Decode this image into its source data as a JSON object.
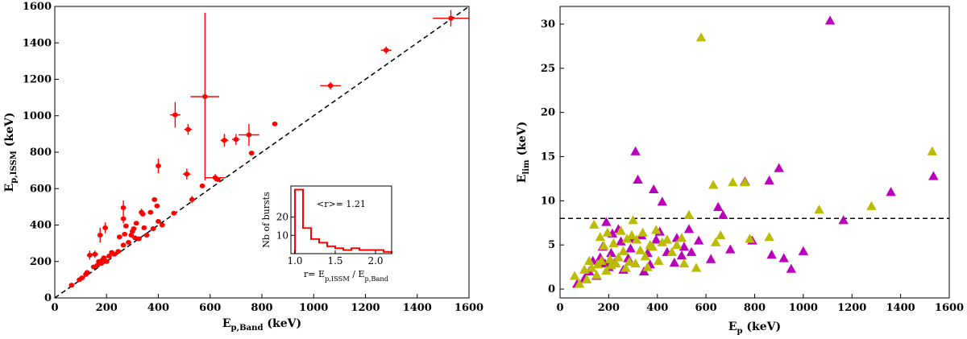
{
  "chart_data": [
    {
      "type": "scatter",
      "title": "",
      "xlabel": "E_p,Band (keV)",
      "ylabel": "E_p,ISSM (keV)",
      "xlim": [
        0,
        1600
      ],
      "ylim": [
        0,
        1600
      ],
      "xticks": [
        "0",
        "200",
        "400",
        "600",
        "800",
        "1000",
        "1200",
        "1400",
        "1600"
      ],
      "yticks": [
        "0",
        "200",
        "400",
        "600",
        "800",
        "1000",
        "1200",
        "1400",
        "1600"
      ],
      "reference_line": "y = x (dashed)",
      "marker_color": "#ff0000",
      "points": [
        {
          "x": 65,
          "y": 70,
          "xe": 0,
          "ye": 0
        },
        {
          "x": 95,
          "y": 100,
          "xe": 0,
          "ye": 0
        },
        {
          "x": 105,
          "y": 110,
          "xe": 0,
          "ye": 0
        },
        {
          "x": 120,
          "y": 130,
          "xe": 0,
          "ye": 0
        },
        {
          "x": 125,
          "y": 140,
          "xe": 0,
          "ye": 0
        },
        {
          "x": 135,
          "y": 235,
          "xe": 10,
          "ye": 25
        },
        {
          "x": 155,
          "y": 240,
          "xe": 12,
          "ye": 20
        },
        {
          "x": 150,
          "y": 170,
          "xe": 0,
          "ye": 0
        },
        {
          "x": 165,
          "y": 180,
          "xe": 0,
          "ye": 0
        },
        {
          "x": 170,
          "y": 200,
          "xe": 0,
          "ye": 0
        },
        {
          "x": 175,
          "y": 345,
          "xe": 10,
          "ye": 40
        },
        {
          "x": 180,
          "y": 190,
          "xe": 0,
          "ye": 0
        },
        {
          "x": 185,
          "y": 210,
          "xe": 0,
          "ye": 0
        },
        {
          "x": 190,
          "y": 220,
          "xe": 0,
          "ye": 0
        },
        {
          "x": 195,
          "y": 385,
          "xe": 8,
          "ye": 30
        },
        {
          "x": 200,
          "y": 200,
          "xe": 0,
          "ye": 0
        },
        {
          "x": 210,
          "y": 230,
          "xe": 0,
          "ye": 0
        },
        {
          "x": 220,
          "y": 250,
          "xe": 0,
          "ye": 0
        },
        {
          "x": 230,
          "y": 240,
          "xe": 0,
          "ye": 0
        },
        {
          "x": 245,
          "y": 255,
          "xe": 0,
          "ye": 0
        },
        {
          "x": 250,
          "y": 335,
          "xe": 0,
          "ye": 0
        },
        {
          "x": 265,
          "y": 290,
          "xe": 0,
          "ye": 0
        },
        {
          "x": 265,
          "y": 435,
          "xe": 0,
          "ye": 25
        },
        {
          "x": 265,
          "y": 495,
          "xe": 0,
          "ye": 40
        },
        {
          "x": 270,
          "y": 350,
          "xe": 0,
          "ye": 0
        },
        {
          "x": 275,
          "y": 395,
          "xe": 0,
          "ye": 0
        },
        {
          "x": 285,
          "y": 305,
          "xe": 0,
          "ye": 0
        },
        {
          "x": 295,
          "y": 345,
          "xe": 0,
          "ye": 0
        },
        {
          "x": 300,
          "y": 365,
          "xe": 0,
          "ye": 0
        },
        {
          "x": 305,
          "y": 380,
          "xe": 0,
          "ye": 0
        },
        {
          "x": 310,
          "y": 330,
          "xe": 0,
          "ye": 0
        },
        {
          "x": 315,
          "y": 410,
          "xe": 0,
          "ye": 0
        },
        {
          "x": 325,
          "y": 325,
          "xe": 0,
          "ye": 0
        },
        {
          "x": 335,
          "y": 470,
          "xe": 0,
          "ye": 20
        },
        {
          "x": 340,
          "y": 460,
          "xe": 0,
          "ye": 0
        },
        {
          "x": 345,
          "y": 385,
          "xe": 0,
          "ye": 0
        },
        {
          "x": 355,
          "y": 345,
          "xe": 0,
          "ye": 0
        },
        {
          "x": 370,
          "y": 470,
          "xe": 0,
          "ye": 0
        },
        {
          "x": 380,
          "y": 380,
          "xe": 0,
          "ye": 0
        },
        {
          "x": 385,
          "y": 540,
          "xe": 0,
          "ye": 0
        },
        {
          "x": 395,
          "y": 505,
          "xe": 0,
          "ye": 0
        },
        {
          "x": 400,
          "y": 725,
          "xe": 0,
          "ye": 40
        },
        {
          "x": 400,
          "y": 420,
          "xe": 0,
          "ye": 0
        },
        {
          "x": 415,
          "y": 400,
          "xe": 0,
          "ye": 0
        },
        {
          "x": 460,
          "y": 465,
          "xe": 0,
          "ye": 0
        },
        {
          "x": 465,
          "y": 1005,
          "xe": 20,
          "ye": 70
        },
        {
          "x": 510,
          "y": 680,
          "xe": 15,
          "ye": 30
        },
        {
          "x": 515,
          "y": 925,
          "xe": 15,
          "ye": 30
        },
        {
          "x": 530,
          "y": 540,
          "xe": 0,
          "ye": 20
        },
        {
          "x": 570,
          "y": 615,
          "xe": 0,
          "ye": 0
        },
        {
          "x": 580,
          "y": 1105,
          "xe": 55,
          "ye": 460
        },
        {
          "x": 620,
          "y": 660,
          "xe": 40,
          "ye": 20
        },
        {
          "x": 630,
          "y": 650,
          "xe": 0,
          "ye": 0
        },
        {
          "x": 655,
          "y": 865,
          "xe": 15,
          "ye": 35
        },
        {
          "x": 700,
          "y": 870,
          "xe": 15,
          "ye": 30
        },
        {
          "x": 750,
          "y": 895,
          "xe": 40,
          "ye": 60
        },
        {
          "x": 760,
          "y": 795,
          "xe": 0,
          "ye": 0
        },
        {
          "x": 850,
          "y": 955,
          "xe": 0,
          "ye": 0
        },
        {
          "x": 1065,
          "y": 1165,
          "xe": 40,
          "ye": 20
        },
        {
          "x": 1280,
          "y": 1360,
          "xe": 20,
          "ye": 20
        },
        {
          "x": 1530,
          "y": 1535,
          "xe": 70,
          "ye": 45
        }
      ],
      "inset": {
        "type": "histogram",
        "ylabel": "Nb of bursts",
        "xlabel": "r= E_p,ISSM / E_p,Band",
        "annotation": "<r>= 1.21",
        "xlim": [
          0.95,
          2.2
        ],
        "ylim": [
          0,
          37
        ],
        "xticks": [
          "1.0",
          "1.5",
          "2.0"
        ],
        "yticks": [
          "10",
          "20"
        ],
        "bin_edges": [
          1.0,
          1.1,
          1.2,
          1.3,
          1.4,
          1.5,
          1.6,
          1.7,
          1.8,
          1.9,
          2.0,
          2.1,
          2.2
        ],
        "counts": [
          35,
          14,
          8,
          6,
          4,
          3,
          2,
          3,
          2,
          2,
          2,
          1
        ]
      }
    },
    {
      "type": "scatter",
      "title": "",
      "xlabel": "E_p (keV)",
      "ylabel": "E_lim (keV)",
      "xlim": [
        0,
        1600
      ],
      "ylim": [
        -1,
        32
      ],
      "xticks": [
        "0",
        "200",
        "400",
        "600",
        "800",
        "1000",
        "1200",
        "1400",
        "1600"
      ],
      "yticks": [
        "0",
        "5",
        "10",
        "15",
        "20",
        "25",
        "30"
      ],
      "threshold_line": {
        "y": 8,
        "style": "dashed"
      },
      "series": [
        {
          "name": "purple",
          "color": "#bb00bb",
          "marker": "triangle",
          "points": [
            [
              70,
              0.6
            ],
            [
              100,
              1.2
            ],
            [
              120,
              2.0
            ],
            [
              135,
              3.2
            ],
            [
              150,
              1.5
            ],
            [
              165,
              3.6
            ],
            [
              175,
              4.8
            ],
            [
              185,
              2.9
            ],
            [
              190,
              7.6
            ],
            [
              200,
              2.5
            ],
            [
              210,
              4.1
            ],
            [
              215,
              6.3
            ],
            [
              225,
              3.0
            ],
            [
              240,
              6.8
            ],
            [
              250,
              5.4
            ],
            [
              260,
              2.2
            ],
            [
              280,
              3.5
            ],
            [
              290,
              4.6
            ],
            [
              300,
              5.7
            ],
            [
              310,
              15.6
            ],
            [
              320,
              12.4
            ],
            [
              335,
              6.1
            ],
            [
              345,
              2.0
            ],
            [
              360,
              4.1
            ],
            [
              370,
              2.8
            ],
            [
              385,
              11.3
            ],
            [
              395,
              5.6
            ],
            [
              410,
              6.5
            ],
            [
              420,
              9.9
            ],
            [
              440,
              4.2
            ],
            [
              470,
              3.0
            ],
            [
              480,
              5.8
            ],
            [
              500,
              3.8
            ],
            [
              510,
              4.8
            ],
            [
              530,
              6.8
            ],
            [
              540,
              4.2
            ],
            [
              570,
              5.5
            ],
            [
              620,
              3.4
            ],
            [
              650,
              9.3
            ],
            [
              670,
              8.4
            ],
            [
              700,
              4.5
            ],
            [
              760,
              12.2
            ],
            [
              790,
              5.5
            ],
            [
              860,
              12.3
            ],
            [
              870,
              3.9
            ],
            [
              900,
              13.7
            ],
            [
              920,
              3.5
            ],
            [
              950,
              2.3
            ],
            [
              1000,
              4.3
            ],
            [
              1110,
              30.4
            ],
            [
              1165,
              7.8
            ],
            [
              1360,
              11.0
            ],
            [
              1535,
              12.8
            ]
          ]
        },
        {
          "name": "olive",
          "color": "#bbbb00",
          "marker": "triangle",
          "points": [
            [
              60,
              1.5
            ],
            [
              80,
              0.6
            ],
            [
              100,
              2.2
            ],
            [
              110,
              1.1
            ],
            [
              120,
              3.2
            ],
            [
              130,
              2.4
            ],
            [
              140,
              7.3
            ],
            [
              150,
              1.6
            ],
            [
              155,
              2.8
            ],
            [
              165,
              5.9
            ],
            [
              170,
              3.2
            ],
            [
              180,
              4.9
            ],
            [
              190,
              2.1
            ],
            [
              195,
              6.4
            ],
            [
              205,
              3.4
            ],
            [
              210,
              2.7
            ],
            [
              220,
              5.2
            ],
            [
              230,
              2.9
            ],
            [
              240,
              3.6
            ],
            [
              250,
              6.6
            ],
            [
              260,
              4.3
            ],
            [
              270,
              2.4
            ],
            [
              275,
              5.7
            ],
            [
              285,
              3.1
            ],
            [
              295,
              6.1
            ],
            [
              300,
              7.8
            ],
            [
              310,
              2.9
            ],
            [
              315,
              5.6
            ],
            [
              330,
              4.4
            ],
            [
              340,
              6.4
            ],
            [
              350,
              3.7
            ],
            [
              360,
              2.5
            ],
            [
              370,
              5.0
            ],
            [
              380,
              4.8
            ],
            [
              395,
              6.7
            ],
            [
              405,
              3.2
            ],
            [
              420,
              5.3
            ],
            [
              440,
              5.6
            ],
            [
              460,
              4.2
            ],
            [
              480,
              5.0
            ],
            [
              500,
              5.8
            ],
            [
              510,
              2.9
            ],
            [
              530,
              8.4
            ],
            [
              560,
              2.4
            ],
            [
              580,
              28.5
            ],
            [
              630,
              11.8
            ],
            [
              640,
              5.3
            ],
            [
              660,
              6.1
            ],
            [
              710,
              12.1
            ],
            [
              760,
              12.1
            ],
            [
              780,
              5.7
            ],
            [
              860,
              5.9
            ],
            [
              1065,
              9.0
            ],
            [
              1280,
              9.4
            ],
            [
              1530,
              15.6
            ]
          ]
        }
      ]
    }
  ]
}
